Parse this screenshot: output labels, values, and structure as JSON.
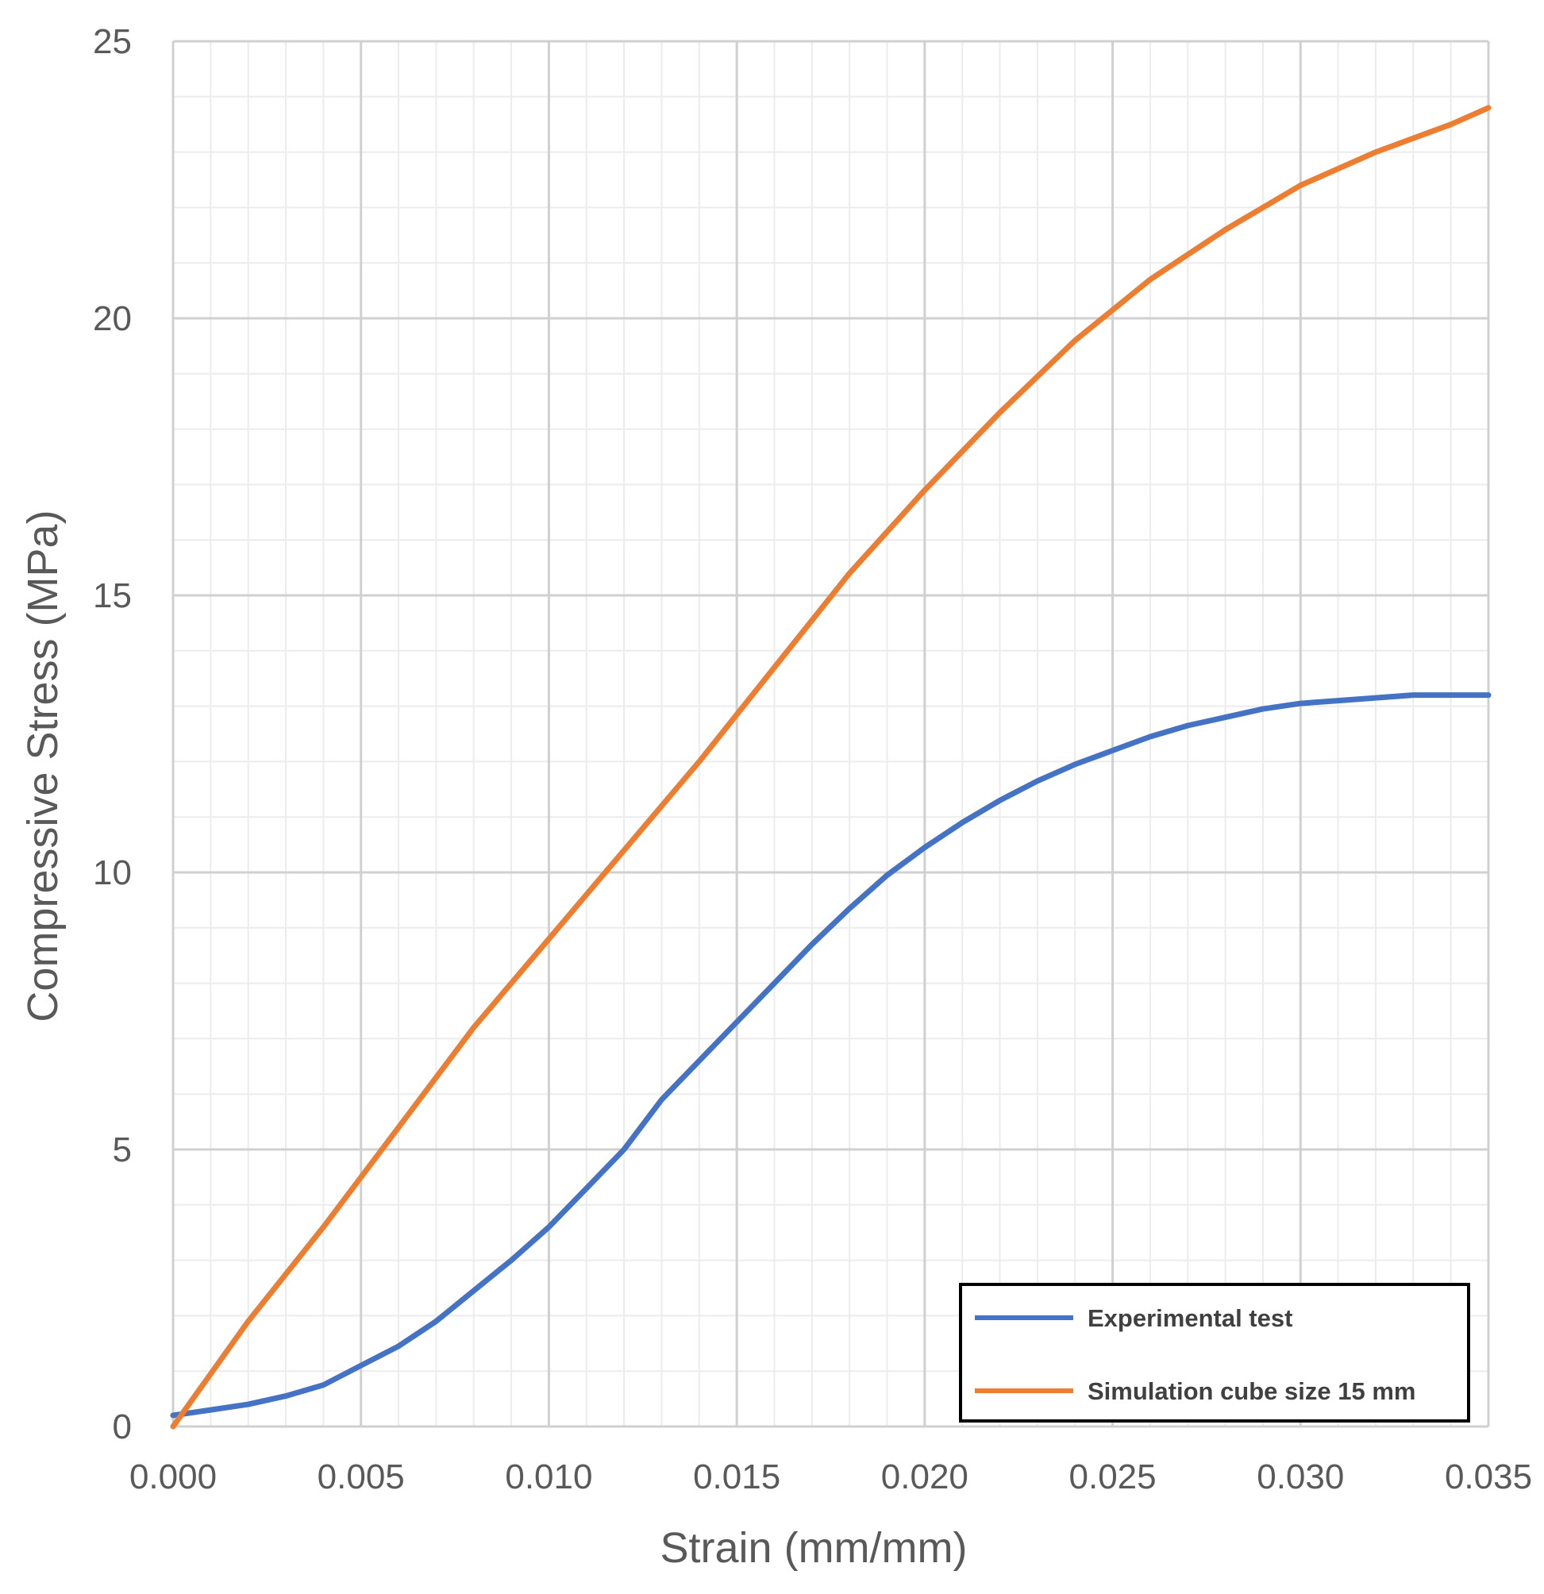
{
  "chart_data": {
    "type": "line",
    "title": "",
    "xlabel": "Strain (mm/mm)",
    "ylabel": "Compressive Stress (MPa)",
    "xlim": [
      0,
      0.035
    ],
    "ylim": [
      0,
      25
    ],
    "x_ticks": [
      0,
      0.005,
      0.01,
      0.015,
      0.02,
      0.025,
      0.03,
      0.035
    ],
    "x_tick_labels": [
      "0.000",
      "0.005",
      "0.010",
      "0.015",
      "0.020",
      "0.025",
      "0.030",
      "0.035"
    ],
    "y_ticks": [
      0,
      5,
      10,
      15,
      20,
      25
    ],
    "y_tick_labels": [
      "0",
      "5",
      "10",
      "15",
      "20",
      "25"
    ],
    "x_minor_step": 0.001,
    "y_minor_step": 1,
    "grid": true,
    "legend_position": "bottom-right",
    "series": [
      {
        "name": "Experimental test",
        "color": "#4472C4",
        "x": [
          0,
          0.001,
          0.002,
          0.003,
          0.004,
          0.005,
          0.006,
          0.007,
          0.008,
          0.009,
          0.01,
          0.011,
          0.012,
          0.013,
          0.014,
          0.015,
          0.016,
          0.017,
          0.018,
          0.019,
          0.02,
          0.021,
          0.022,
          0.023,
          0.024,
          0.025,
          0.026,
          0.027,
          0.028,
          0.029,
          0.03,
          0.031,
          0.032,
          0.033,
          0.034,
          0.035
        ],
        "y": [
          0.2,
          0.3,
          0.4,
          0.55,
          0.75,
          1.1,
          1.45,
          1.9,
          2.45,
          3.0,
          3.6,
          4.3,
          5.0,
          5.9,
          6.6,
          7.3,
          8.0,
          8.7,
          9.35,
          9.95,
          10.45,
          10.9,
          11.3,
          11.65,
          11.95,
          12.2,
          12.45,
          12.65,
          12.8,
          12.95,
          13.05,
          13.1,
          13.15,
          13.2,
          13.2,
          13.2
        ]
      },
      {
        "name": "Simulation cube size 15 mm",
        "color": "#ED7D31",
        "x": [
          0,
          0.002,
          0.004,
          0.006,
          0.008,
          0.01,
          0.012,
          0.014,
          0.016,
          0.018,
          0.02,
          0.022,
          0.024,
          0.026,
          0.028,
          0.03,
          0.032,
          0.034,
          0.035
        ],
        "y": [
          0.0,
          1.9,
          3.6,
          5.4,
          7.2,
          8.8,
          10.4,
          12.0,
          13.7,
          15.4,
          16.9,
          18.3,
          19.6,
          20.7,
          21.6,
          22.4,
          23.0,
          23.5,
          23.8
        ]
      }
    ]
  }
}
